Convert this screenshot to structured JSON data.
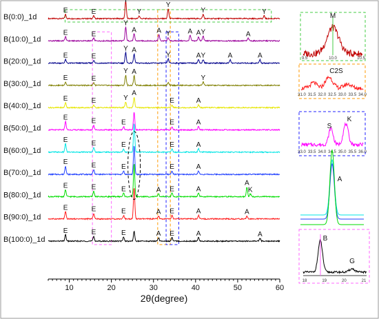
{
  "chart_data": {
    "type": "line",
    "xlabel": "2θ(degree)",
    "xlim": [
      5,
      60
    ],
    "xticks": [
      10,
      20,
      30,
      40,
      50,
      60
    ],
    "series": [
      {
        "name": "B(0:0)_1d",
        "color": "#c00000",
        "peaks": [
          {
            "x": 9.1,
            "h": 6,
            "label": "E"
          },
          {
            "x": 15.8,
            "h": 4,
            "label": "E"
          },
          {
            "x": 23.4,
            "h": 26,
            "label": "Y"
          },
          {
            "x": 26.6,
            "h": 4,
            "label": "Y"
          },
          {
            "x": 33.5,
            "h": 14,
            "label": "Y"
          },
          {
            "x": 41.8,
            "h": 6,
            "label": "Y"
          },
          {
            "x": 56.3,
            "h": 4,
            "label": "Y"
          }
        ]
      },
      {
        "name": "B(10:0)_1d",
        "color": "#9b009b",
        "peaks": [
          {
            "x": 9.1,
            "h": 6,
            "label": "E"
          },
          {
            "x": 15.8,
            "h": 4,
            "label": "E"
          },
          {
            "x": 23.4,
            "h": 20,
            "label": "Y"
          },
          {
            "x": 25.4,
            "h": 10,
            "label": "A"
          },
          {
            "x": 31.3,
            "h": 9,
            "label": "A"
          },
          {
            "x": 33.5,
            "h": 5,
            "label": "Y"
          },
          {
            "x": 38.7,
            "h": 8,
            "label": "A"
          },
          {
            "x": 40.7,
            "h": 6,
            "label": "A"
          },
          {
            "x": 41.8,
            "h": 7,
            "label": "Y"
          },
          {
            "x": 52.5,
            "h": 4,
            "label": "A"
          }
        ]
      },
      {
        "name": "B(20:0)_1d",
        "color": "#00008b",
        "peaks": [
          {
            "x": 9.1,
            "h": 5,
            "label": "E"
          },
          {
            "x": 15.8,
            "h": 4,
            "label": "E"
          },
          {
            "x": 23.4,
            "h": 15,
            "label": "Y"
          },
          {
            "x": 25.4,
            "h": 13,
            "label": "A"
          },
          {
            "x": 33.5,
            "h": 6,
            "label": "Y"
          },
          {
            "x": 40.7,
            "h": 5,
            "label": "A"
          },
          {
            "x": 41.8,
            "h": 5,
            "label": "Y"
          },
          {
            "x": 48.2,
            "h": 5,
            "label": "A"
          },
          {
            "x": 55.3,
            "h": 5,
            "label": "A"
          }
        ]
      },
      {
        "name": "B(30:0)_1d",
        "color": "#7f7f00",
        "peaks": [
          {
            "x": 9.1,
            "h": 5,
            "label": "E"
          },
          {
            "x": 15.8,
            "h": 4,
            "label": "E"
          },
          {
            "x": 23.4,
            "h": 15,
            "label": "Y"
          },
          {
            "x": 25.4,
            "h": 14,
            "label": "A"
          },
          {
            "x": 33.5,
            "h": 4,
            "label": ""
          },
          {
            "x": 41.8,
            "h": 5,
            "label": "Y"
          }
        ]
      },
      {
        "name": "B(40:0)_1d",
        "color": "#e6e600",
        "peaks": [
          {
            "x": 9.1,
            "h": 7,
            "label": "E"
          },
          {
            "x": 15.8,
            "h": 4,
            "label": "E"
          },
          {
            "x": 23.4,
            "h": 8,
            "label": "Y"
          },
          {
            "x": 25.4,
            "h": 15,
            "label": "A"
          },
          {
            "x": 34.4,
            "h": 4,
            "label": "E"
          },
          {
            "x": 40.7,
            "h": 4,
            "label": "A"
          }
        ]
      },
      {
        "name": "B(50:0)_1d",
        "color": "#ff00ff",
        "peaks": [
          {
            "x": 9.1,
            "h": 12,
            "label": "E"
          },
          {
            "x": 15.8,
            "h": 7,
            "label": "E"
          },
          {
            "x": 22.9,
            "h": 5,
            "label": "E"
          },
          {
            "x": 25.4,
            "h": 26,
            "label": ""
          },
          {
            "x": 34.4,
            "h": 5,
            "label": "E"
          },
          {
            "x": 40.7,
            "h": 5,
            "label": "A"
          }
        ]
      },
      {
        "name": "B(60:0)_1d",
        "color": "#00e5e5",
        "peaks": [
          {
            "x": 9.1,
            "h": 12,
            "label": "E"
          },
          {
            "x": 15.8,
            "h": 7,
            "label": "E"
          },
          {
            "x": 22.9,
            "h": 5,
            "label": "E"
          },
          {
            "x": 25.4,
            "h": 42,
            "label": ""
          },
          {
            "x": 34.4,
            "h": 5,
            "label": "E"
          },
          {
            "x": 40.7,
            "h": 5,
            "label": "A"
          }
        ]
      },
      {
        "name": "B(70:0)_1d",
        "color": "#1f3fff",
        "peaks": [
          {
            "x": 9.1,
            "h": 12,
            "label": "E"
          },
          {
            "x": 15.8,
            "h": 7,
            "label": "E"
          },
          {
            "x": 22.9,
            "h": 5,
            "label": "E"
          },
          {
            "x": 25.4,
            "h": 42,
            "label": ""
          },
          {
            "x": 34.4,
            "h": 5,
            "label": "E"
          },
          {
            "x": 40.7,
            "h": 5,
            "label": "A"
          }
        ]
      },
      {
        "name": "B(80:0)_1d",
        "color": "#00dd00",
        "peaks": [
          {
            "x": 9.1,
            "h": 10,
            "label": "E"
          },
          {
            "x": 15.8,
            "h": 8,
            "label": "E"
          },
          {
            "x": 22.9,
            "h": 5,
            "label": "E"
          },
          {
            "x": 25.4,
            "h": 48,
            "label": ""
          },
          {
            "x": 31.2,
            "h": 4,
            "label": "A"
          },
          {
            "x": 34.4,
            "h": 5,
            "label": "E"
          },
          {
            "x": 40.7,
            "h": 5,
            "label": "A"
          },
          {
            "x": 52.2,
            "h": 14,
            "label": "A"
          },
          {
            "x": 53.0,
            "h": 4,
            "label": "K"
          }
        ]
      },
      {
        "name": "B(90:0)_1d",
        "color": "#ff1a1a",
        "peaks": [
          {
            "x": 9.1,
            "h": 10,
            "label": "E"
          },
          {
            "x": 15.8,
            "h": 8,
            "label": "E"
          },
          {
            "x": 22.9,
            "h": 5,
            "label": "E"
          },
          {
            "x": 25.4,
            "h": 45,
            "label": ""
          },
          {
            "x": 31.2,
            "h": 4,
            "label": "A"
          },
          {
            "x": 34.4,
            "h": 5,
            "label": "E"
          },
          {
            "x": 40.7,
            "h": 5,
            "label": "A"
          },
          {
            "x": 52.2,
            "h": 4,
            "label": "A"
          }
        ]
      },
      {
        "name": "B(100:0)_1d",
        "color": "#000000",
        "peaks": [
          {
            "x": 9.1,
            "h": 9,
            "label": "E"
          },
          {
            "x": 15.8,
            "h": 7,
            "label": "E"
          },
          {
            "x": 22.9,
            "h": 6,
            "label": "E"
          },
          {
            "x": 25.4,
            "h": 14,
            "label": ""
          },
          {
            "x": 31.2,
            "h": 5,
            "label": "A"
          },
          {
            "x": 34.4,
            "h": 5,
            "label": "E"
          },
          {
            "x": 40.7,
            "h": 5,
            "label": "A"
          },
          {
            "x": 55.3,
            "h": 4,
            "label": "A"
          }
        ]
      }
    ],
    "highlights": [
      {
        "color": "#ff66ff",
        "xrange": [
          15.5,
          20.0
        ],
        "series_span": [
          1,
          10
        ]
      },
      {
        "color": "#ff9900",
        "xrange": [
          31.0,
          34.0
        ],
        "series_span": [
          0,
          10
        ]
      },
      {
        "color": "#2222ff",
        "xrange": [
          33.0,
          36.0
        ],
        "series_span": [
          1,
          10
        ]
      },
      {
        "color": "#44cc44",
        "xrange": [
          9.0,
          58.0
        ],
        "series_span": [
          0,
          0
        ]
      }
    ],
    "ellipse": {
      "x": 25.4,
      "series_span": [
        6,
        8
      ]
    },
    "insets": [
      {
        "id": "inset-m",
        "color": "#44cc44",
        "label": "M",
        "line_color": "#c00000",
        "xlim": [
          9.5,
          10.5
        ],
        "ticks": [
          "9.5",
          "10.0",
          "10.5"
        ],
        "peak_x": 10.0
      },
      {
        "id": "inset-c2s",
        "color": "#ff9900",
        "label": "C2S",
        "line_color": "#ff1a1a",
        "xlim": [
          31.0,
          34.0
        ],
        "ticks": [
          "31.0",
          "31.5",
          "32.0",
          "32.5",
          "33.0",
          "33.5",
          "34.0"
        ],
        "peak_x": 32.4
      },
      {
        "id": "inset-sk",
        "color": "#2222ff",
        "label_s": "S",
        "label_k": "K",
        "line_color": "#ff00ff",
        "xlim": [
          33.0,
          36.0
        ],
        "ticks": [
          "33.0",
          "33.5",
          "34.0",
          "34.5",
          "35.0",
          "35.5",
          "36.0"
        ],
        "peak_s": 34.2,
        "peak_k": 35.2
      },
      {
        "id": "inset-a",
        "label": "A",
        "peak_x": 25.4
      },
      {
        "id": "inset-bg",
        "color": "#ff66ff",
        "label_b": "B",
        "label_g": "G",
        "line_color": "#000000",
        "xlim": [
          18,
          21
        ],
        "ticks": [
          "18",
          "19",
          "20",
          "21"
        ],
        "peak_b": 18.8,
        "peak_g": 20.3
      }
    ]
  }
}
